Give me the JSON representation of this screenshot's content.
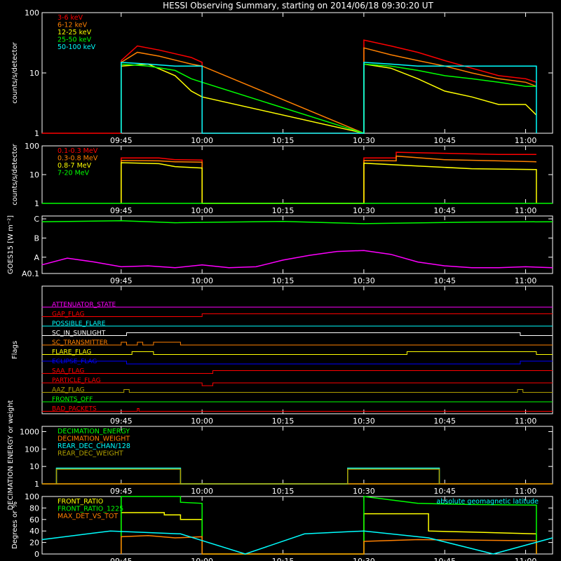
{
  "title": "HESSI Observing Summary, starting on 2014/06/18 09:30:20 UT",
  "time_labels": [
    "09:45",
    "10:00",
    "10:15",
    "10:30",
    "10:45",
    "11:00"
  ],
  "time_label_values": [
    45,
    60,
    75,
    90,
    105,
    120
  ],
  "time_range_min": [
    30.33,
    125
  ],
  "colors": {
    "red": "#ff0000",
    "orange": "#ff8000",
    "yellow": "#ffff00",
    "green": "#00ff00",
    "cyan": "#00ffff",
    "magenta": "#ff00ff",
    "blue": "#0000ff",
    "olive": "#b0a000",
    "white": "#ffffff",
    "brightgreen": "#00ff00"
  },
  "chart_data": [
    {
      "id": "lo-energy",
      "type": "line",
      "ylabel": "counts/s/detector",
      "yscale": "log",
      "ylim": [
        1,
        100
      ],
      "yticks": [
        "1",
        "10",
        "100"
      ],
      "ytick_values": [
        1,
        10,
        100
      ],
      "legend_position": "top-left",
      "series": [
        {
          "name": "3-6 keV",
          "color": "red",
          "x": [
            30.3,
            45,
            45,
            48,
            52,
            58,
            60,
            60,
            90,
            90,
            95,
            100,
            105,
            110,
            115,
            120,
            122
          ],
          "y": [
            1,
            1,
            16,
            28,
            24,
            18,
            15,
            1,
            1,
            35,
            28,
            22,
            16,
            12,
            9,
            8,
            7
          ]
        },
        {
          "name": "6-12 keV",
          "color": "orange",
          "x": [
            45,
            45,
            48,
            52,
            58,
            60,
            90,
            90,
            95,
            100,
            105,
            110,
            115,
            120,
            122
          ],
          "y": [
            1,
            15,
            22,
            19,
            14,
            13,
            1,
            26,
            20,
            16,
            13,
            10,
            8,
            7,
            6
          ]
        },
        {
          "name": "12-25 keV",
          "color": "yellow",
          "x": [
            45,
            45,
            50,
            55,
            58,
            60,
            90,
            90,
            95,
            100,
            105,
            110,
            115,
            120,
            122
          ],
          "y": [
            1,
            13,
            14,
            9,
            5,
            4,
            1,
            14,
            12,
            8,
            5,
            4,
            3,
            3,
            2
          ]
        },
        {
          "name": "25-50 keV",
          "color": "green",
          "x": [
            45,
            45,
            50,
            55,
            58,
            60,
            90,
            90,
            95,
            100,
            105,
            110,
            115,
            120,
            122
          ],
          "y": [
            1,
            14,
            13,
            11,
            8,
            7,
            1,
            14,
            13,
            11,
            9,
            8,
            7,
            6,
            6
          ]
        },
        {
          "name": "50-100 keV",
          "color": "cyan",
          "x": [
            45,
            45,
            50,
            55,
            60,
            60,
            90,
            90,
            95,
            100,
            105,
            110,
            115,
            120,
            122,
            122
          ],
          "y": [
            1,
            15,
            14,
            13,
            13,
            1,
            1,
            15,
            14,
            13,
            13,
            13,
            13,
            13,
            13,
            1
          ]
        }
      ]
    },
    {
      "id": "hi-energy",
      "type": "line",
      "ylabel": "counts/s/detector",
      "yscale": "log",
      "ylim": [
        1,
        100
      ],
      "yticks": [
        "1",
        "10",
        "100"
      ],
      "ytick_values": [
        1,
        10,
        100
      ],
      "legend_position": "top-left",
      "series": [
        {
          "name": "0.1-0.3 MeV",
          "color": "red",
          "x": [
            45,
            45,
            52,
            55,
            60,
            60,
            90,
            90,
            96,
            96,
            105,
            115,
            122
          ],
          "y": [
            1,
            38,
            38,
            33,
            32,
            1,
            1,
            38,
            38,
            60,
            55,
            50,
            50
          ]
        },
        {
          "name": "0.3-0.8 MeV",
          "color": "orange",
          "x": [
            45,
            45,
            52,
            55,
            60,
            60,
            90,
            90,
            96,
            96,
            105,
            115,
            122
          ],
          "y": [
            1,
            31,
            30,
            28,
            27,
            1,
            1,
            31,
            30,
            44,
            33,
            30,
            28
          ]
        },
        {
          "name": "0.8-7 MeV",
          "color": "yellow",
          "x": [
            45,
            45,
            52,
            55,
            60,
            60,
            90,
            90,
            100,
            110,
            122,
            122
          ],
          "y": [
            1,
            26,
            24,
            19,
            17,
            1,
            1,
            25,
            20,
            16,
            15,
            1
          ]
        },
        {
          "name": "7-20 MeV",
          "color": "green",
          "x": [
            30.3,
            125
          ],
          "y": [
            1,
            1
          ]
        }
      ]
    },
    {
      "id": "goes",
      "type": "line",
      "ylabel": "GOES15 [W m⁻²]",
      "yscale": "class",
      "ylim": [
        0,
        3
      ],
      "yticks": [
        "A0.1",
        "A",
        "B",
        "C"
      ],
      "ytick_values": [
        0,
        0.85,
        1.85,
        2.85
      ],
      "series": [
        {
          "name": "GOES upper",
          "color": "green",
          "x": [
            30.3,
            45,
            55,
            75,
            90,
            110,
            125
          ],
          "y": [
            2.7,
            2.75,
            2.65,
            2.72,
            2.6,
            2.68,
            2.7
          ]
        },
        {
          "name": "GOES lower",
          "color": "magenta",
          "x": [
            30.3,
            35,
            40,
            45,
            50,
            55,
            60,
            65,
            70,
            75,
            80,
            85,
            90,
            95,
            100,
            105,
            110,
            115,
            120,
            125
          ],
          "y": [
            0.45,
            0.8,
            0.6,
            0.35,
            0.4,
            0.3,
            0.45,
            0.3,
            0.35,
            0.7,
            0.95,
            1.15,
            1.2,
            1.0,
            0.6,
            0.4,
            0.3,
            0.3,
            0.35,
            0.3
          ]
        }
      ]
    },
    {
      "id": "flags",
      "type": "line",
      "ylabel": "Flags",
      "flags": [
        {
          "name": "ATTENUATOR_STATE",
          "color": "magenta",
          "x": [
            30.3,
            125
          ],
          "y": [
            0,
            0
          ]
        },
        {
          "name": "GAP_FLAG",
          "color": "red",
          "x": [
            30.3,
            60,
            60,
            125
          ],
          "y": [
            0,
            0,
            1,
            1
          ]
        },
        {
          "name": "POSSIBLE_FLARE",
          "color": "cyan",
          "x": [
            30.3,
            125
          ],
          "y": [
            0,
            0
          ]
        },
        {
          "name": "SC_IN_SUNLIGHT",
          "color": "white",
          "x": [
            30.3,
            46,
            46,
            119,
            119,
            125
          ],
          "y": [
            0,
            0,
            1,
            1,
            0,
            0
          ]
        },
        {
          "name": "SC_TRANSMITTER",
          "color": "orange",
          "x": [
            30.3,
            45,
            45,
            46,
            46,
            48,
            48,
            49,
            49,
            51,
            51,
            56,
            56,
            125
          ],
          "y": [
            0,
            0,
            1,
            1,
            0,
            0,
            1,
            1,
            0,
            0,
            1,
            1,
            0,
            0
          ]
        },
        {
          "name": "FLARE_FLAG",
          "color": "yellow",
          "x": [
            30.3,
            47,
            47,
            51,
            51,
            98,
            98,
            122,
            122,
            125
          ],
          "y": [
            0,
            0,
            1,
            1,
            0,
            0,
            1,
            1,
            0,
            0
          ]
        },
        {
          "name": "ECLIPSE_FLAG",
          "color": "blue",
          "x": [
            30.3,
            46,
            46,
            119,
            119,
            125
          ],
          "y": [
            1,
            1,
            0,
            0,
            1,
            1
          ]
        },
        {
          "name": "SAA_FLAG",
          "color": "red",
          "x": [
            30.3,
            62,
            62,
            125
          ],
          "y": [
            0,
            0,
            1,
            1
          ]
        },
        {
          "name": "PARTICLE_FLAG",
          "color": "red",
          "x": [
            30.3,
            60,
            60,
            62,
            62,
            125
          ],
          "y": [
            0,
            0,
            -1,
            -1,
            0,
            0
          ]
        },
        {
          "name": "AAZ_FLAG",
          "color": "olive",
          "x": [
            30.3,
            45.5,
            45.5,
            46.5,
            46.5,
            118.5,
            118.5,
            119.5,
            119.5,
            125
          ],
          "y": [
            0,
            0,
            1,
            1,
            0,
            0,
            1,
            1,
            0,
            0
          ]
        },
        {
          "name": "FRONTS_OFF",
          "color": "green",
          "x": [
            30.3,
            125
          ],
          "y": [
            0,
            0
          ]
        },
        {
          "name": "BAD_PACKETS",
          "color": "red",
          "x": [
            30.3,
            48,
            48,
            48.3,
            48.3,
            125
          ],
          "y": [
            0,
            0,
            1,
            1,
            0,
            0
          ]
        }
      ]
    },
    {
      "id": "decimation",
      "type": "line",
      "ylabel": "DECIMATION ENERGY or weight",
      "yscale": "log",
      "ylim": [
        1,
        2000
      ],
      "yticks": [
        "1",
        "10",
        "100",
        "1000"
      ],
      "ytick_values": [
        1,
        10,
        100,
        1000
      ],
      "legend_position": "top-left",
      "series": [
        {
          "name": "DECIMATION_ENERGY",
          "color": "green",
          "x": [
            30.3,
            125
          ],
          "y": [
            1,
            1
          ]
        },
        {
          "name": "DECIMATION_WEIGHT",
          "color": "orange",
          "x": [
            30.3,
            125
          ],
          "y": [
            1,
            1
          ]
        },
        {
          "name": "REAR_DEC_CHAN/128",
          "color": "cyan",
          "x": [
            33,
            33,
            56,
            56,
            87,
            87,
            104,
            104
          ],
          "y": [
            1,
            8,
            8,
            1,
            1,
            8,
            8,
            1
          ]
        },
        {
          "name": "REAR_DEC_WEIGHT",
          "color": "olive",
          "x": [
            33,
            33,
            56,
            56,
            87,
            87,
            104,
            104
          ],
          "y": [
            1,
            7,
            7,
            1,
            1,
            7,
            7,
            1
          ]
        }
      ]
    },
    {
      "id": "ratio",
      "type": "line",
      "ylabel": "Degrees or %",
      "yscale": "linear",
      "ylim": [
        0,
        100
      ],
      "yticks": [
        "0",
        "20",
        "40",
        "60",
        "80",
        "100"
      ],
      "ytick_values": [
        0,
        20,
        40,
        60,
        80,
        100
      ],
      "annotation": "absolute geomagnetic latitude",
      "series": [
        {
          "name": "FRONT_RATIO",
          "color": "yellow",
          "x": [
            45,
            45,
            53,
            53,
            56,
            56,
            60,
            60,
            90,
            90,
            102,
            102,
            110,
            122,
            122
          ],
          "y": [
            0,
            72,
            72,
            68,
            68,
            60,
            60,
            0,
            0,
            70,
            70,
            40,
            38,
            35,
            0
          ]
        },
        {
          "name": "FRONT_RATIO_1225",
          "color": "brightgreen",
          "x": [
            45,
            45,
            56,
            56,
            60,
            60,
            90,
            90,
            100,
            110,
            122,
            122
          ],
          "y": [
            0,
            100,
            100,
            90,
            88,
            0,
            0,
            100,
            88,
            86,
            85,
            0
          ]
        },
        {
          "name": "MAX_DET_VS_TOT",
          "color": "orange",
          "x": [
            45,
            45,
            50,
            55,
            60,
            60,
            90,
            90,
            100,
            110,
            122,
            122
          ],
          "y": [
            0,
            30,
            32,
            28,
            30,
            0,
            0,
            22,
            25,
            24,
            23,
            0
          ]
        },
        {
          "name": "geomagnetic latitude",
          "color": "cyan",
          "x": [
            30.3,
            43,
            56,
            68,
            79,
            90,
            102,
            114,
            125
          ],
          "y": [
            25,
            40,
            35,
            0,
            35,
            40,
            28,
            0,
            28
          ]
        }
      ]
    }
  ]
}
